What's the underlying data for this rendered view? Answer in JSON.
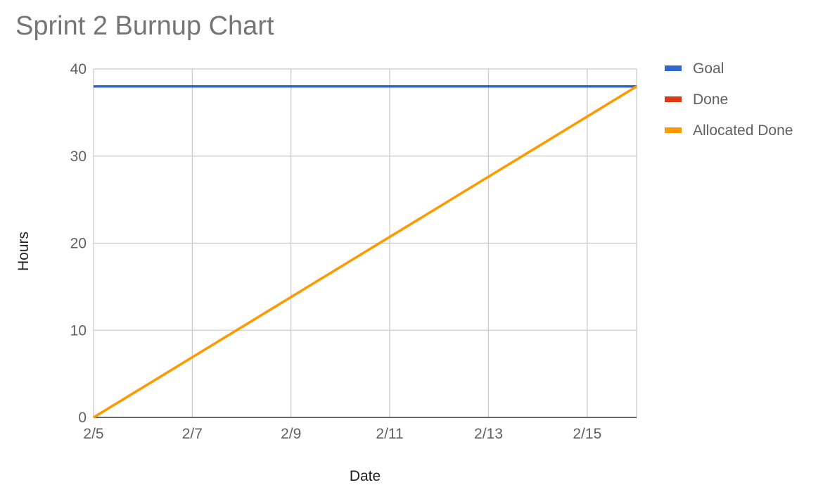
{
  "chart_data": {
    "type": "line",
    "title": "Sprint 2 Burnup Chart",
    "xlabel": "Date",
    "ylabel": "Hours",
    "x_tick_labels": [
      "2/5",
      "2/7",
      "2/9",
      "2/11",
      "2/13",
      "2/15"
    ],
    "xlim": [
      "2/5",
      "2/16"
    ],
    "ylim": [
      0,
      40
    ],
    "y_ticks": [
      0,
      10,
      20,
      30,
      40
    ],
    "grid": true,
    "legend_position": "right",
    "series": [
      {
        "name": "Goal",
        "color": "#3366cc",
        "points": [
          {
            "x": "2/5",
            "y": 38
          },
          {
            "x": "2/16",
            "y": 38
          }
        ]
      },
      {
        "name": "Done",
        "color": "#dc3912",
        "points": []
      },
      {
        "name": "Allocated Done",
        "color": "#ff9900",
        "points": [
          {
            "x": "2/5",
            "y": 0
          },
          {
            "x": "2/16",
            "y": 38
          }
        ]
      }
    ]
  }
}
